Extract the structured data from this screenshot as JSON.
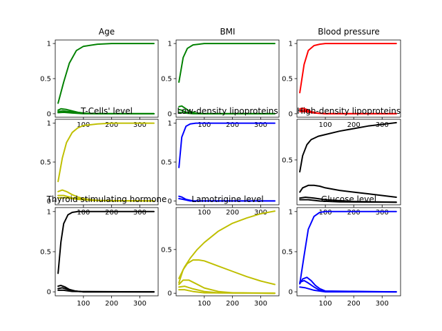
{
  "chart_data": [
    {
      "type": "line",
      "title": "Age",
      "color": "#008000",
      "xlim": [
        0,
        365
      ],
      "ylim": [
        -0.05,
        1.05
      ],
      "xticks": [
        100,
        200,
        300
      ],
      "yticks": [
        0.0,
        0.5,
        1.0
      ],
      "series": [
        {
          "x": [
            10,
            30,
            50,
            75,
            100,
            150,
            200,
            250,
            300,
            350
          ],
          "y": [
            0.15,
            0.45,
            0.72,
            0.9,
            0.96,
            0.99,
            1.0,
            1.0,
            1.0,
            1.0
          ]
        },
        {
          "x": [
            10,
            20,
            40,
            60,
            80,
            100,
            150,
            200,
            350
          ],
          "y": [
            0.05,
            0.07,
            0.06,
            0.04,
            0.02,
            0.01,
            0.0,
            0.0,
            0.0
          ]
        },
        {
          "x": [
            10,
            25,
            50,
            75,
            100,
            200,
            350
          ],
          "y": [
            0.03,
            0.04,
            0.03,
            0.015,
            0.005,
            0.0,
            0.0
          ]
        },
        {
          "x": [
            10,
            30,
            60,
            100,
            350
          ],
          "y": [
            0.015,
            0.02,
            0.01,
            0.0,
            0.0
          ]
        }
      ]
    },
    {
      "type": "line",
      "title": "BMI",
      "color": "#008000",
      "xlim": [
        0,
        365
      ],
      "ylim": [
        -0.05,
        1.05
      ],
      "xticks": [
        100,
        200,
        300
      ],
      "yticks": [
        0.0,
        0.5,
        1.0
      ],
      "series": [
        {
          "x": [
            10,
            25,
            40,
            60,
            80,
            100,
            150,
            200,
            350
          ],
          "y": [
            0.45,
            0.8,
            0.93,
            0.98,
            0.99,
            1.0,
            1.0,
            1.0,
            1.0
          ]
        },
        {
          "x": [
            10,
            20,
            35,
            50,
            70,
            100,
            350
          ],
          "y": [
            0.1,
            0.11,
            0.07,
            0.03,
            0.01,
            0.0,
            0.0
          ]
        },
        {
          "x": [
            10,
            20,
            35,
            60,
            100,
            350
          ],
          "y": [
            0.06,
            0.05,
            0.02,
            0.005,
            0.0,
            0.0
          ]
        },
        {
          "x": [
            10,
            30,
            60,
            350
          ],
          "y": [
            0.02,
            0.01,
            0.0,
            0.0
          ]
        }
      ]
    },
    {
      "type": "line",
      "title": "Blood pressure",
      "color": "#ff0000",
      "xlim": [
        0,
        365
      ],
      "ylim": [
        -0.05,
        1.05
      ],
      "xticks": [
        100,
        200,
        300
      ],
      "yticks": [
        0.0,
        0.5,
        1.0
      ],
      "series": [
        {
          "x": [
            10,
            25,
            40,
            60,
            80,
            100,
            150,
            200,
            350
          ],
          "y": [
            0.3,
            0.7,
            0.9,
            0.97,
            0.99,
            1.0,
            1.0,
            1.0,
            1.0
          ]
        },
        {
          "x": [
            10,
            20,
            35,
            50,
            70,
            100,
            350
          ],
          "y": [
            0.07,
            0.08,
            0.06,
            0.03,
            0.01,
            0.0,
            0.0
          ]
        },
        {
          "x": [
            10,
            25,
            45,
            70,
            100,
            350
          ],
          "y": [
            0.05,
            0.05,
            0.03,
            0.01,
            0.0,
            0.0
          ]
        },
        {
          "x": [
            10,
            30,
            60,
            100,
            350
          ],
          "y": [
            0.03,
            0.03,
            0.01,
            0.0,
            0.0
          ]
        }
      ]
    },
    {
      "type": "line",
      "title": "T-Cells' level",
      "color": "#bfbf00",
      "xlim": [
        0,
        365
      ],
      "ylim": [
        -0.05,
        1.05
      ],
      "xticks": [
        100,
        200,
        300
      ],
      "yticks": [
        0.0,
        0.5,
        1.0
      ],
      "series": [
        {
          "x": [
            10,
            25,
            40,
            60,
            80,
            100,
            150,
            200,
            250,
            350
          ],
          "y": [
            0.25,
            0.55,
            0.75,
            0.88,
            0.94,
            0.97,
            0.99,
            1.0,
            1.0,
            1.0
          ]
        },
        {
          "x": [
            10,
            25,
            40,
            60,
            80,
            100,
            130,
            160,
            200,
            350
          ],
          "y": [
            0.12,
            0.14,
            0.12,
            0.08,
            0.05,
            0.03,
            0.015,
            0.005,
            0.0,
            0.0
          ]
        },
        {
          "x": [
            10,
            30,
            60,
            100,
            150,
            350
          ],
          "y": [
            0.07,
            0.07,
            0.04,
            0.02,
            0.005,
            0.0
          ]
        },
        {
          "x": [
            10,
            40,
            80,
            130,
            350
          ],
          "y": [
            0.04,
            0.04,
            0.02,
            0.005,
            0.0
          ]
        }
      ]
    },
    {
      "type": "line",
      "title": "Low-density lipoproteins",
      "color": "#0000ff",
      "xlim": [
        0,
        365
      ],
      "ylim": [
        -0.05,
        1.05
      ],
      "xticks": [
        100,
        200,
        300
      ],
      "yticks": [
        0.0,
        0.5,
        1.0
      ],
      "series": [
        {
          "x": [
            10,
            20,
            35,
            50,
            70,
            100,
            150,
            350
          ],
          "y": [
            0.43,
            0.82,
            0.96,
            0.99,
            1.0,
            1.0,
            1.0,
            1.0
          ]
        },
        {
          "x": [
            10,
            20,
            35,
            60,
            350
          ],
          "y": [
            0.06,
            0.05,
            0.02,
            0.0,
            0.0
          ]
        },
        {
          "x": [
            10,
            25,
            50,
            350
          ],
          "y": [
            0.03,
            0.02,
            0.0,
            0.0
          ]
        }
      ]
    },
    {
      "type": "line",
      "title": "High-density lipoproteins",
      "color": "#000000",
      "xlim": [
        0,
        365
      ],
      "ylim": [
        -0.03,
        0.98
      ],
      "xticks": [
        100,
        200,
        300
      ],
      "yticks": [
        0.5
      ],
      "series": [
        {
          "x": [
            10,
            20,
            35,
            50,
            75,
            100,
            150,
            200,
            250,
            300,
            350
          ],
          "y": [
            0.36,
            0.55,
            0.68,
            0.74,
            0.78,
            0.8,
            0.84,
            0.87,
            0.9,
            0.92,
            0.94
          ]
        },
        {
          "x": [
            10,
            20,
            40,
            60,
            80,
            100,
            150,
            200,
            250,
            300,
            350
          ],
          "y": [
            0.12,
            0.17,
            0.2,
            0.2,
            0.19,
            0.17,
            0.14,
            0.12,
            0.1,
            0.08,
            0.06
          ]
        },
        {
          "x": [
            10,
            30,
            60,
            100,
            150,
            200,
            350
          ],
          "y": [
            0.05,
            0.06,
            0.05,
            0.03,
            0.02,
            0.01,
            0.0
          ]
        },
        {
          "x": [
            10,
            40,
            80,
            150,
            350
          ],
          "y": [
            0.03,
            0.03,
            0.015,
            0.005,
            0.0
          ]
        }
      ]
    },
    {
      "type": "line",
      "title": "Thyroid stimulating hormone",
      "color": "#000000",
      "xlim": [
        0,
        365
      ],
      "ylim": [
        -0.05,
        1.05
      ],
      "xticks": [
        100,
        200,
        300
      ],
      "yticks": [
        0.0,
        0.5,
        1.0
      ],
      "series": [
        {
          "x": [
            10,
            20,
            30,
            45,
            60,
            80,
            100,
            150,
            350
          ],
          "y": [
            0.23,
            0.62,
            0.85,
            0.96,
            0.99,
            1.0,
            1.0,
            1.0,
            1.0
          ]
        },
        {
          "x": [
            10,
            20,
            35,
            50,
            70,
            100,
            350
          ],
          "y": [
            0.07,
            0.08,
            0.06,
            0.03,
            0.01,
            0.0,
            0.0
          ]
        },
        {
          "x": [
            10,
            25,
            45,
            70,
            100,
            350
          ],
          "y": [
            0.04,
            0.05,
            0.03,
            0.01,
            0.0,
            0.0
          ]
        },
        {
          "x": [
            10,
            30,
            60,
            350
          ],
          "y": [
            0.02,
            0.02,
            0.005,
            0.0
          ]
        }
      ]
    },
    {
      "type": "line",
      "title": "Lamotrigine level",
      "color": "#bfbf00",
      "xlim": [
        0,
        365
      ],
      "ylim": [
        -0.03,
        0.98
      ],
      "xticks": [
        100,
        200,
        300
      ],
      "yticks": [
        0.0,
        0.5
      ],
      "series": [
        {
          "x": [
            10,
            30,
            50,
            75,
            100,
            150,
            200,
            250,
            300,
            350
          ],
          "y": [
            0.17,
            0.3,
            0.4,
            0.5,
            0.58,
            0.71,
            0.8,
            0.86,
            0.91,
            0.94
          ]
        },
        {
          "x": [
            10,
            25,
            40,
            60,
            80,
            100,
            150,
            200,
            250,
            300,
            350
          ],
          "y": [
            0.12,
            0.27,
            0.34,
            0.38,
            0.38,
            0.37,
            0.31,
            0.25,
            0.19,
            0.14,
            0.1
          ]
        },
        {
          "x": [
            10,
            25,
            45,
            70,
            100,
            150,
            200,
            350
          ],
          "y": [
            0.1,
            0.15,
            0.15,
            0.11,
            0.06,
            0.02,
            0.005,
            0.0
          ]
        },
        {
          "x": [
            10,
            30,
            60,
            100,
            150,
            350
          ],
          "y": [
            0.07,
            0.08,
            0.05,
            0.02,
            0.005,
            0.0
          ]
        },
        {
          "x": [
            10,
            30,
            60,
            100,
            350
          ],
          "y": [
            0.04,
            0.04,
            0.02,
            0.005,
            0.0
          ]
        }
      ]
    },
    {
      "type": "line",
      "title": "Glucose level",
      "color": "#0000ff",
      "xlim": [
        0,
        365
      ],
      "ylim": [
        -0.05,
        1.05
      ],
      "xticks": [
        100,
        200,
        300
      ],
      "yticks": [
        0.0,
        0.5,
        1.0
      ],
      "series": [
        {
          "x": [
            10,
            25,
            40,
            60,
            80,
            100,
            150,
            350
          ],
          "y": [
            0.1,
            0.45,
            0.78,
            0.94,
            0.99,
            1.0,
            1.0,
            1.0
          ]
        },
        {
          "x": [
            10,
            20,
            35,
            50,
            65,
            80,
            100,
            350
          ],
          "y": [
            0.1,
            0.16,
            0.18,
            0.14,
            0.08,
            0.04,
            0.01,
            0.0
          ]
        },
        {
          "x": [
            10,
            25,
            40,
            60,
            80,
            100,
            350
          ],
          "y": [
            0.12,
            0.14,
            0.11,
            0.06,
            0.02,
            0.005,
            0.0
          ]
        },
        {
          "x": [
            10,
            30,
            60,
            100,
            350
          ],
          "y": [
            0.06,
            0.05,
            0.02,
            0.0,
            0.0
          ]
        }
      ]
    }
  ]
}
